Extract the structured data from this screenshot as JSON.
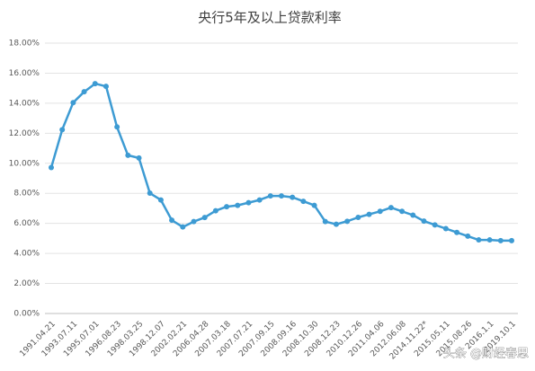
{
  "chart_data": {
    "type": "line",
    "title": "央行5年及以上贷款利率",
    "categories": [
      "1991.04.21",
      null,
      "1993.07.11",
      null,
      "1995.07.01",
      null,
      "1996.08.23",
      null,
      "1998.03.25",
      null,
      "1998.12.07",
      null,
      "2002.02.21",
      null,
      "2006.04.28",
      null,
      "2007.03.18",
      null,
      "2007.07.21",
      null,
      "2007.09.15",
      null,
      "2008.09.16",
      null,
      "2008.10.30",
      null,
      "2008.12.23",
      null,
      "2010.12.26",
      null,
      "2011.04.06",
      null,
      "2012.06.08",
      null,
      "2014.11.22*",
      null,
      "2015.05.11",
      null,
      "2015.08.26",
      null,
      "2016.1.1",
      null,
      "2019.10.1"
    ],
    "series": [
      {
        "name": "利率",
        "color": "#3d9bd3",
        "values": [
          9.72,
          12.24,
          14.04,
          14.76,
          15.3,
          15.12,
          12.42,
          10.53,
          10.35,
          8.01,
          7.56,
          6.21,
          5.76,
          6.12,
          6.39,
          6.84,
          7.11,
          7.2,
          7.38,
          7.56,
          7.83,
          7.83,
          7.74,
          7.47,
          7.2,
          6.12,
          5.94,
          6.14,
          6.4,
          6.6,
          6.8,
          7.05,
          6.8,
          6.55,
          6.15,
          5.9,
          5.65,
          5.4,
          5.15,
          4.9,
          4.9,
          4.85,
          4.85
        ]
      }
    ],
    "ylim": [
      0,
      18
    ],
    "yticks": [
      {
        "value": 0,
        "label": "0.00%"
      },
      {
        "value": 2,
        "label": "2.00%"
      },
      {
        "value": 4,
        "label": "4.00%"
      },
      {
        "value": 6,
        "label": "6.00%"
      },
      {
        "value": 8,
        "label": "8.00%"
      },
      {
        "value": 10,
        "label": "10.00%"
      },
      {
        "value": 12,
        "label": "12.00%"
      },
      {
        "value": 14,
        "label": "14.00%"
      },
      {
        "value": 16,
        "label": "16.00%"
      },
      {
        "value": 18,
        "label": "18.00%"
      }
    ],
    "grid": true,
    "watermark": "头条 @财经春思"
  }
}
